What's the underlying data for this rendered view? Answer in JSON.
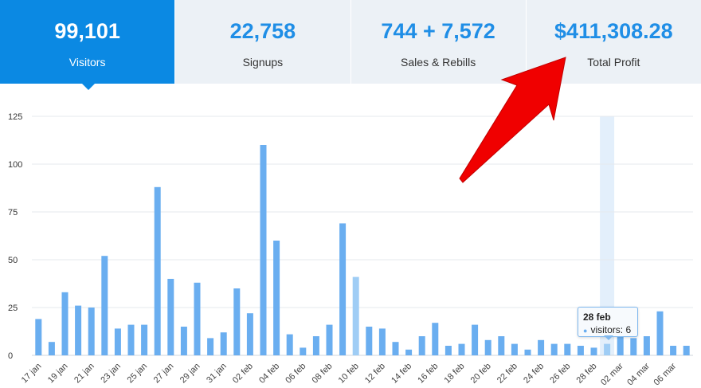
{
  "stats": [
    {
      "value": "99,101",
      "label": "Visitors"
    },
    {
      "value": "22,758",
      "label": "Signups"
    },
    {
      "value": "744 + 7,572",
      "label": "Sales & Rebills"
    },
    {
      "value": "$411,308.28",
      "label": "Total Profit"
    }
  ],
  "tooltip": {
    "date": "28 feb",
    "series": "visitors",
    "value": "6"
  },
  "colors": {
    "accent": "#0b89e3",
    "bar": "#6aaef0",
    "bar_light": "#9fcdf5",
    "arrow": "#f00000"
  },
  "chart_data": {
    "type": "bar",
    "ylim": [
      0,
      125
    ],
    "yticks": [
      0,
      25,
      50,
      75,
      100,
      125
    ],
    "xtick_labels": [
      "17 jan",
      "19 jan",
      "21 jan",
      "23 jan",
      "25 jan",
      "27 jan",
      "29 jan",
      "31 jan",
      "02 feb",
      "04 feb",
      "06 feb",
      "08 feb",
      "10 feb",
      "12 feb",
      "14 feb",
      "16 feb",
      "18 feb",
      "20 feb",
      "22 feb",
      "24 feb",
      "26 feb",
      "28 feb",
      "02 mar",
      "04 mar",
      "06 mar"
    ],
    "series": [
      {
        "name": "visitors",
        "values": [
          19,
          7,
          33,
          26,
          25,
          52,
          14,
          16,
          16,
          88,
          40,
          15,
          38,
          9,
          12,
          35,
          22,
          110,
          60,
          11,
          4,
          10,
          16,
          69,
          41,
          15,
          14,
          7,
          3,
          10,
          17,
          5,
          6,
          16,
          8,
          10,
          6,
          3,
          8,
          6,
          6,
          5,
          4,
          6,
          10,
          9,
          10,
          23,
          5,
          5
        ]
      }
    ],
    "highlight_index": 43
  }
}
